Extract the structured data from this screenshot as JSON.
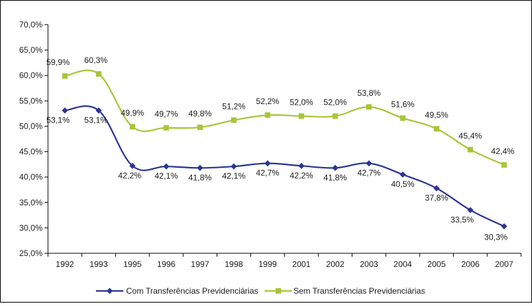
{
  "chart_data": {
    "type": "line",
    "categories": [
      "1992",
      "1993",
      "1995",
      "1996",
      "1997",
      "1998",
      "1999",
      "2001",
      "2002",
      "2003",
      "2004",
      "2005",
      "2006",
      "2007"
    ],
    "y_ticks": [
      "25,0%",
      "30,0%",
      "35,0%",
      "40,0%",
      "45,0%",
      "50,0%",
      "55,0%",
      "60,0%",
      "65,0%",
      "70,0%"
    ],
    "ylim": [
      25,
      70
    ],
    "grid": false,
    "legend_position": "bottom",
    "series": [
      {
        "name": "Com Transferências Previdenciárias",
        "color": "#2a3593",
        "marker": "diamond",
        "values": [
          53.1,
          53.1,
          42.2,
          42.1,
          41.8,
          42.1,
          42.7,
          42.2,
          41.8,
          42.7,
          40.5,
          37.8,
          33.5,
          30.3
        ],
        "labels": [
          "53,1%",
          "53,1%",
          "42,2%",
          "42,1%",
          "41,8%",
          "42,1%",
          "42,7%",
          "42,2%",
          "41,8%",
          "42,7%",
          "40,5%",
          "37,8%",
          "33,5%",
          "30,3%"
        ]
      },
      {
        "name": "Sem Transferências Previdenciárias",
        "color": "#a6c639",
        "marker": "square",
        "values": [
          59.9,
          60.3,
          49.9,
          49.7,
          49.8,
          51.2,
          52.2,
          52.0,
          52.0,
          53.8,
          51.6,
          49.5,
          45.4,
          42.4
        ],
        "labels": [
          "59,9%",
          "60,3%",
          "49,9%",
          "49,7%",
          "49,8%",
          "51,2%",
          "52,2%",
          "52,0%",
          "52,0%",
          "53,8%",
          "51,6%",
          "49,5%",
          "45,4%",
          "42,4%"
        ]
      }
    ]
  }
}
